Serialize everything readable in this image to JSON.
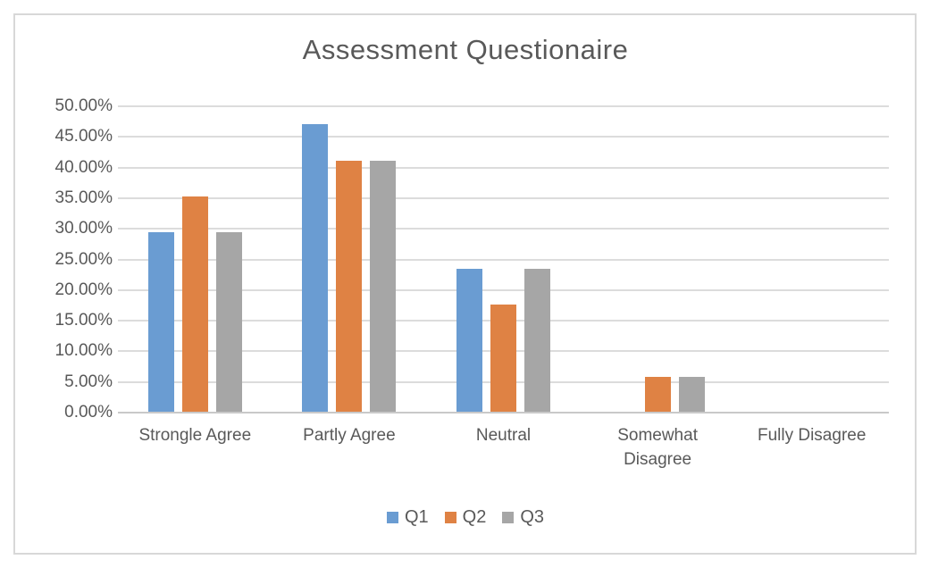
{
  "chart": {
    "title": "Assessment Questionaire"
  },
  "chart_data": {
    "type": "bar",
    "title": "Assessment Questionaire",
    "categories": [
      "Strongle Agree",
      "Partly Agree",
      "Neutral",
      "Somewhat Disagree",
      "Fully Disagree"
    ],
    "series": [
      {
        "name": "Q1",
        "color": "#6A9CD2",
        "values": [
          29.41,
          47.06,
          23.53,
          0,
          0
        ]
      },
      {
        "name": "Q2",
        "color": "#DF8244",
        "values": [
          35.29,
          41.18,
          17.65,
          5.88,
          0
        ]
      },
      {
        "name": "Q3",
        "color": "#A6A6A6",
        "values": [
          29.41,
          41.18,
          23.53,
          5.88,
          0
        ]
      }
    ],
    "ylabel": "",
    "xlabel": "",
    "ylim": [
      0,
      50
    ],
    "ytick_step": 5,
    "ytick_labels": [
      "0.00%",
      "5.00%",
      "10.00%",
      "15.00%",
      "20.00%",
      "25.00%",
      "30.00%",
      "35.00%",
      "40.00%",
      "45.00%",
      "50.00%"
    ],
    "grid": true,
    "legend_position": "bottom",
    "legend_entries": [
      "Q1",
      "Q2",
      "Q3"
    ],
    "colors": {
      "text": "#595959",
      "gridline": "#DCDCDC",
      "axis_line": "#C9C9C9",
      "frame_border": "#D8D8D8",
      "background": "#FFFFFF"
    }
  }
}
